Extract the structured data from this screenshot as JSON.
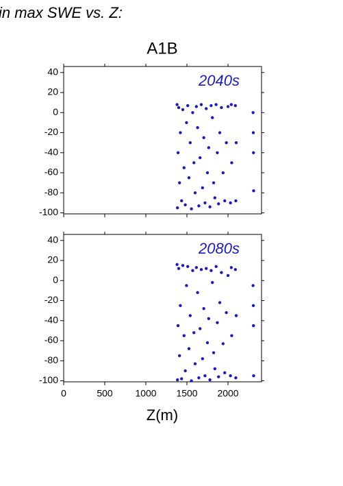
{
  "header": {
    "title": "in max SWE vs. Z:"
  },
  "chart_data": [
    {
      "type": "scatter",
      "title": "A1B",
      "annotation": "2040s",
      "color": "#1c1cb4",
      "xlim": [
        0,
        2408
      ],
      "ylim": [
        -101,
        46
      ],
      "xticks": [
        0,
        500,
        1000,
        1500,
        2000
      ],
      "yticks": [
        40,
        20,
        0,
        -20,
        -40,
        -60,
        -80,
        -100
      ],
      "show_xtick_labels": false,
      "x": [
        1380,
        1385,
        1392,
        1400,
        1410,
        1420,
        1435,
        1450,
        1465,
        1480,
        1495,
        1510,
        1525,
        1540,
        1555,
        1570,
        1585,
        1600,
        1615,
        1630,
        1645,
        1660,
        1675,
        1690,
        1705,
        1720,
        1735,
        1750,
        1765,
        1780,
        1795,
        1810,
        1825,
        1840,
        1855,
        1870,
        1885,
        1900,
        1920,
        1940,
        1960,
        1980,
        2000,
        2030,
        2040,
        2045,
        2090,
        2095,
        2100,
        2305,
        2310,
        2312,
        2308
      ],
      "y": [
        8,
        -95,
        -40,
        5,
        -70,
        -20,
        -88,
        3,
        -55,
        -92,
        -10,
        7,
        -65,
        -30,
        -96,
        0,
        -50,
        -80,
        6,
        -15,
        -93,
        -45,
        8,
        -75,
        -25,
        -90,
        4,
        -60,
        -35,
        -94,
        7,
        -5,
        -70,
        -85,
        8,
        -40,
        -91,
        -20,
        5,
        -60,
        -88,
        -30,
        6,
        -90,
        8,
        -50,
        7,
        -88,
        -30,
        0,
        -40,
        -78,
        -20
      ]
    },
    {
      "type": "scatter",
      "annotation": "2080s",
      "color": "#1c1cb4",
      "xlabel": "Z(m)",
      "xlim": [
        0,
        2408
      ],
      "ylim": [
        -101,
        46
      ],
      "xticks": [
        0,
        500,
        1000,
        1500,
        2000
      ],
      "yticks": [
        40,
        20,
        0,
        -20,
        -40,
        -60,
        -80,
        -100
      ],
      "show_xtick_labels": true,
      "x": [
        1380,
        1385,
        1392,
        1400,
        1410,
        1420,
        1435,
        1450,
        1465,
        1480,
        1495,
        1510,
        1525,
        1540,
        1555,
        1570,
        1585,
        1600,
        1615,
        1630,
        1645,
        1660,
        1675,
        1690,
        1705,
        1720,
        1735,
        1750,
        1765,
        1780,
        1795,
        1810,
        1825,
        1840,
        1855,
        1870,
        1885,
        1900,
        1920,
        1940,
        1960,
        1980,
        2000,
        2030,
        2040,
        2045,
        2090,
        2095,
        2100,
        2305,
        2310,
        2312,
        2308
      ],
      "y": [
        16,
        -99,
        -45,
        12,
        -75,
        -25,
        -98,
        15,
        -55,
        -90,
        -5,
        14,
        -68,
        -35,
        -100,
        10,
        -52,
        -83,
        13,
        -12,
        -97,
        -48,
        11,
        -78,
        -28,
        -95,
        12,
        -62,
        -38,
        -99,
        10,
        -2,
        -72,
        -88,
        14,
        -42,
        -96,
        -22,
        8,
        -63,
        -92,
        -32,
        5,
        -95,
        13,
        -55,
        11,
        -97,
        -35,
        -5,
        -45,
        -95,
        -25
      ]
    }
  ]
}
